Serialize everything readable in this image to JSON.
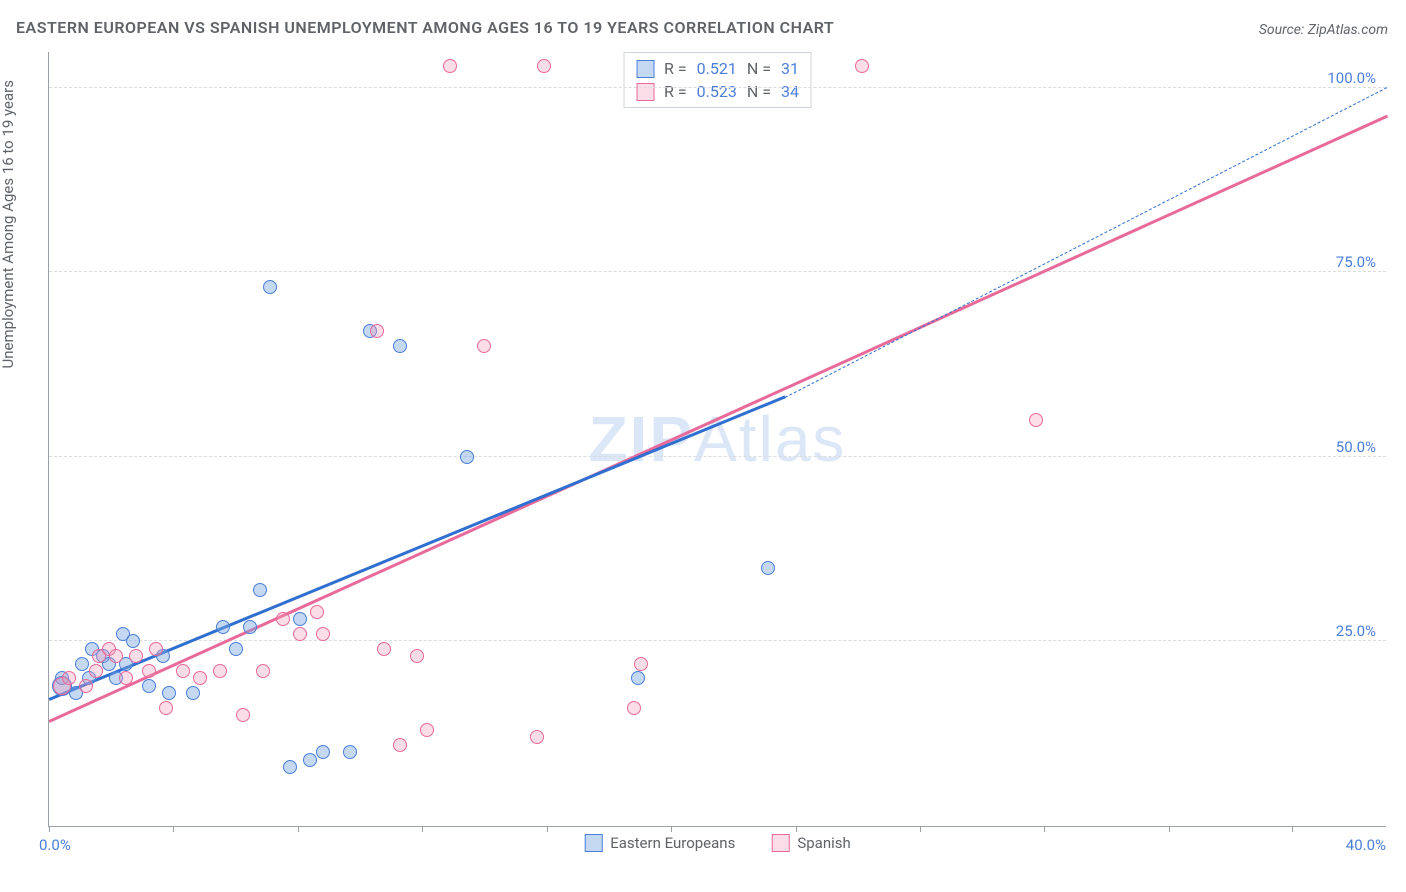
{
  "title": "EASTERN EUROPEAN VS SPANISH UNEMPLOYMENT AMONG AGES 16 TO 19 YEARS CORRELATION CHART",
  "source": "Source: ZipAtlas.com",
  "y_axis_label": "Unemployment Among Ages 16 to 19 years",
  "watermark": {
    "bold": "ZIP",
    "light": "Atlas"
  },
  "chart": {
    "type": "scatter",
    "background_color": "#ffffff",
    "grid_color": "#dadce0",
    "axis_color": "#9aa0a6",
    "text_color": "#5f6368",
    "value_color": "#4a7fd8",
    "xlim": [
      0,
      40
    ],
    "ylim": [
      0,
      105
    ],
    "x_ticks_pct": [
      0,
      9.3,
      18.6,
      27.9,
      37.2,
      46.5,
      55.8,
      65.1,
      74.4,
      83.7,
      92.9
    ],
    "x_tick_labels": {
      "min": "0.0%",
      "max": "40.0%"
    },
    "y_gridlines": [
      25,
      50,
      75,
      100
    ],
    "y_tick_labels": [
      "25.0%",
      "50.0%",
      "75.0%",
      "100.0%"
    ],
    "series": [
      {
        "name": "Eastern Europeans",
        "color_fill": "rgba(125,168,227,0.45)",
        "color_border": "#4a7fd8",
        "marker_size": 14,
        "R": "0.521",
        "N": "31",
        "trend": {
          "color": "#2f6fd0",
          "x0": 0,
          "y0": 17,
          "x1": 22,
          "y1": 58,
          "dash_x1": 40,
          "dash_y1": 100
        },
        "points": [
          {
            "x": 0.4,
            "y": 19,
            "r": 20
          },
          {
            "x": 0.4,
            "y": 20,
            "r": 14
          },
          {
            "x": 0.8,
            "y": 18,
            "r": 14
          },
          {
            "x": 1.0,
            "y": 22,
            "r": 14
          },
          {
            "x": 1.2,
            "y": 20,
            "r": 14
          },
          {
            "x": 1.3,
            "y": 24,
            "r": 14
          },
          {
            "x": 1.6,
            "y": 23,
            "r": 14
          },
          {
            "x": 1.8,
            "y": 22,
            "r": 14
          },
          {
            "x": 2.0,
            "y": 20,
            "r": 14
          },
          {
            "x": 2.2,
            "y": 26,
            "r": 14
          },
          {
            "x": 2.3,
            "y": 22,
            "r": 14
          },
          {
            "x": 2.5,
            "y": 25,
            "r": 14
          },
          {
            "x": 3.0,
            "y": 19,
            "r": 14
          },
          {
            "x": 3.4,
            "y": 23,
            "r": 14
          },
          {
            "x": 3.6,
            "y": 18,
            "r": 14
          },
          {
            "x": 4.3,
            "y": 18,
            "r": 14
          },
          {
            "x": 5.2,
            "y": 27,
            "r": 14
          },
          {
            "x": 5.6,
            "y": 24,
            "r": 14
          },
          {
            "x": 6.0,
            "y": 27,
            "r": 14
          },
          {
            "x": 6.3,
            "y": 32,
            "r": 14
          },
          {
            "x": 6.6,
            "y": 73,
            "r": 14
          },
          {
            "x": 7.2,
            "y": 8,
            "r": 14
          },
          {
            "x": 7.5,
            "y": 28,
            "r": 14
          },
          {
            "x": 7.8,
            "y": 9,
            "r": 14
          },
          {
            "x": 8.2,
            "y": 10,
            "r": 14
          },
          {
            "x": 9.0,
            "y": 10,
            "r": 14
          },
          {
            "x": 9.6,
            "y": 67,
            "r": 14
          },
          {
            "x": 10.5,
            "y": 65,
            "r": 14
          },
          {
            "x": 12.5,
            "y": 50,
            "r": 14
          },
          {
            "x": 17.6,
            "y": 20,
            "r": 14
          },
          {
            "x": 21.5,
            "y": 35,
            "r": 14
          }
        ]
      },
      {
        "name": "Spanish",
        "color_fill": "rgba(240,158,186,0.35)",
        "color_border": "#e86a9a",
        "marker_size": 14,
        "R": "0.523",
        "N": "34",
        "trend": {
          "color": "#e86a9a",
          "x0": 0,
          "y0": 14,
          "x1": 40,
          "y1": 96
        },
        "points": [
          {
            "x": 0.4,
            "y": 19,
            "r": 18
          },
          {
            "x": 0.6,
            "y": 20,
            "r": 14
          },
          {
            "x": 1.1,
            "y": 19,
            "r": 14
          },
          {
            "x": 1.4,
            "y": 21,
            "r": 14
          },
          {
            "x": 1.5,
            "y": 23,
            "r": 14
          },
          {
            "x": 1.8,
            "y": 24,
            "r": 14
          },
          {
            "x": 2.0,
            "y": 23,
            "r": 14
          },
          {
            "x": 2.3,
            "y": 20,
            "r": 14
          },
          {
            "x": 2.6,
            "y": 23,
            "r": 14
          },
          {
            "x": 3.0,
            "y": 21,
            "r": 14
          },
          {
            "x": 3.2,
            "y": 24,
            "r": 14
          },
          {
            "x": 3.5,
            "y": 16,
            "r": 14
          },
          {
            "x": 4.0,
            "y": 21,
            "r": 14
          },
          {
            "x": 4.5,
            "y": 20,
            "r": 14
          },
          {
            "x": 5.1,
            "y": 21,
            "r": 14
          },
          {
            "x": 5.8,
            "y": 15,
            "r": 14
          },
          {
            "x": 6.4,
            "y": 21,
            "r": 14
          },
          {
            "x": 7.0,
            "y": 28,
            "r": 14
          },
          {
            "x": 7.5,
            "y": 26,
            "r": 14
          },
          {
            "x": 8.0,
            "y": 29,
            "r": 14
          },
          {
            "x": 8.2,
            "y": 26,
            "r": 14
          },
          {
            "x": 9.8,
            "y": 67,
            "r": 14
          },
          {
            "x": 10.0,
            "y": 24,
            "r": 14
          },
          {
            "x": 10.5,
            "y": 11,
            "r": 14
          },
          {
            "x": 11.0,
            "y": 23,
            "r": 14
          },
          {
            "x": 11.3,
            "y": 13,
            "r": 14
          },
          {
            "x": 12.0,
            "y": 103,
            "r": 14
          },
          {
            "x": 13.0,
            "y": 65,
            "r": 14
          },
          {
            "x": 14.6,
            "y": 12,
            "r": 14
          },
          {
            "x": 14.8,
            "y": 103,
            "r": 14
          },
          {
            "x": 17.5,
            "y": 16,
            "r": 14
          },
          {
            "x": 17.7,
            "y": 22,
            "r": 14
          },
          {
            "x": 24.3,
            "y": 103,
            "r": 14
          },
          {
            "x": 29.5,
            "y": 55,
            "r": 14
          }
        ]
      }
    ],
    "legend_top_labels": {
      "R": "R  =",
      "N": "N  ="
    },
    "legend_bottom": [
      "Eastern Europeans",
      "Spanish"
    ]
  }
}
